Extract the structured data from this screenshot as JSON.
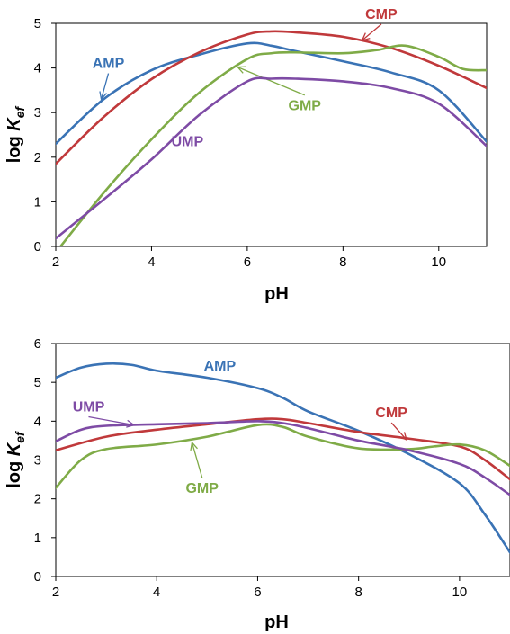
{
  "chart_data": [
    {
      "type": "line",
      "xlabel": "pH",
      "ylabel_main": "log K",
      "ylabel_sub": "ef",
      "xlim": [
        2,
        11
      ],
      "ylim": [
        0,
        5
      ],
      "xticks": [
        2,
        4,
        6,
        8,
        10
      ],
      "yticks": [
        0,
        1,
        2,
        3,
        4,
        5
      ],
      "series": [
        {
          "name": "AMP",
          "color": "#3a73b5",
          "points": [
            [
              2,
              2.3
            ],
            [
              3,
              3.3
            ],
            [
              4,
              3.95
            ],
            [
              5,
              4.3
            ],
            [
              6,
              4.55
            ],
            [
              6.5,
              4.5
            ],
            [
              7,
              4.38
            ],
            [
              8,
              4.15
            ],
            [
              9,
              3.9
            ],
            [
              10,
              3.5
            ],
            [
              11,
              2.35
            ]
          ],
          "label_x": 3.1,
          "label_y": 4.0,
          "arrow_to": [
            2.95,
            3.3
          ]
        },
        {
          "name": "CMP",
          "color": "#c0393b",
          "points": [
            [
              2,
              1.85
            ],
            [
              3,
              2.9
            ],
            [
              4,
              3.75
            ],
            [
              5,
              4.35
            ],
            [
              6,
              4.75
            ],
            [
              6.5,
              4.82
            ],
            [
              7,
              4.8
            ],
            [
              8,
              4.7
            ],
            [
              9,
              4.45
            ],
            [
              10,
              4.05
            ],
            [
              11,
              3.55
            ]
          ],
          "label_x": 8.8,
          "label_y": 5.1,
          "arrow_to": [
            8.4,
            4.62
          ]
        },
        {
          "name": "GMP",
          "color": "#7fab47",
          "points": [
            [
              2.1,
              0
            ],
            [
              3,
              1.2
            ],
            [
              4,
              2.4
            ],
            [
              5,
              3.45
            ],
            [
              6,
              4.2
            ],
            [
              6.5,
              4.33
            ],
            [
              7,
              4.35
            ],
            [
              8,
              4.33
            ],
            [
              8.7,
              4.4
            ],
            [
              9.3,
              4.5
            ],
            [
              10,
              4.25
            ],
            [
              10.5,
              3.98
            ],
            [
              11,
              3.95
            ]
          ],
          "label_x": 7.2,
          "label_y": 3.05,
          "arrow_to": [
            5.8,
            4.02
          ]
        },
        {
          "name": "UMP",
          "color": "#7e4ba5",
          "points": [
            [
              2,
              0.18
            ],
            [
              3,
              1.05
            ],
            [
              4,
              1.95
            ],
            [
              5,
              2.95
            ],
            [
              6,
              3.7
            ],
            [
              6.5,
              3.76
            ],
            [
              7,
              3.76
            ],
            [
              8,
              3.7
            ],
            [
              9,
              3.55
            ],
            [
              10,
              3.2
            ],
            [
              11,
              2.25
            ]
          ],
          "label_x": 4.75,
          "label_y": 2.25,
          "arrow_to": null
        }
      ]
    },
    {
      "type": "line",
      "xlabel": "pH",
      "ylabel_main": "log K",
      "ylabel_sub": "ef",
      "xlim": [
        2,
        11
      ],
      "ylim": [
        0,
        6
      ],
      "xticks": [
        2,
        4,
        6,
        8,
        10
      ],
      "yticks": [
        0,
        1,
        2,
        3,
        4,
        5,
        6
      ],
      "series": [
        {
          "name": "AMP",
          "color": "#3a73b5",
          "points": [
            [
              2,
              5.12
            ],
            [
              2.5,
              5.38
            ],
            [
              3,
              5.48
            ],
            [
              3.5,
              5.45
            ],
            [
              4,
              5.3
            ],
            [
              5,
              5.12
            ],
            [
              6,
              4.85
            ],
            [
              6.5,
              4.6
            ],
            [
              7,
              4.25
            ],
            [
              8,
              3.75
            ],
            [
              9,
              3.15
            ],
            [
              10,
              2.4
            ],
            [
              10.5,
              1.6
            ],
            [
              11,
              0.62
            ]
          ],
          "label_x": 5.25,
          "label_y": 5.3,
          "arrow_to": null
        },
        {
          "name": "CMP",
          "color": "#c0393b",
          "points": [
            [
              2,
              3.25
            ],
            [
              3,
              3.6
            ],
            [
              4,
              3.78
            ],
            [
              5,
              3.92
            ],
            [
              6,
              4.05
            ],
            [
              6.5,
              4.05
            ],
            [
              7,
              3.95
            ],
            [
              8,
              3.72
            ],
            [
              9,
              3.55
            ],
            [
              10,
              3.35
            ],
            [
              10.5,
              3.0
            ],
            [
              11,
              2.5
            ]
          ],
          "label_x": 8.65,
          "label_y": 4.1,
          "arrow_to": [
            8.95,
            3.52
          ]
        },
        {
          "name": "GMP",
          "color": "#7fab47",
          "points": [
            [
              2,
              2.28
            ],
            [
              2.5,
              3.0
            ],
            [
              3,
              3.28
            ],
            [
              4,
              3.4
            ],
            [
              5,
              3.6
            ],
            [
              6,
              3.9
            ],
            [
              6.5,
              3.85
            ],
            [
              7,
              3.6
            ],
            [
              8,
              3.3
            ],
            [
              9,
              3.28
            ],
            [
              9.5,
              3.35
            ],
            [
              10,
              3.4
            ],
            [
              10.5,
              3.25
            ],
            [
              11,
              2.85
            ]
          ],
          "label_x": 4.9,
          "label_y": 2.15,
          "arrow_to": [
            4.7,
            3.45
          ]
        },
        {
          "name": "UMP",
          "color": "#7e4ba5",
          "points": [
            [
              2,
              3.48
            ],
            [
              2.5,
              3.78
            ],
            [
              3,
              3.88
            ],
            [
              4,
              3.92
            ],
            [
              5,
              3.95
            ],
            [
              6,
              4.0
            ],
            [
              6.5,
              3.95
            ],
            [
              7,
              3.82
            ],
            [
              8,
              3.5
            ],
            [
              9,
              3.25
            ],
            [
              10,
              2.9
            ],
            [
              10.5,
              2.55
            ],
            [
              11,
              2.1
            ]
          ],
          "label_x": 2.65,
          "label_y": 4.25,
          "arrow_to": [
            3.55,
            3.9
          ]
        }
      ]
    }
  ]
}
